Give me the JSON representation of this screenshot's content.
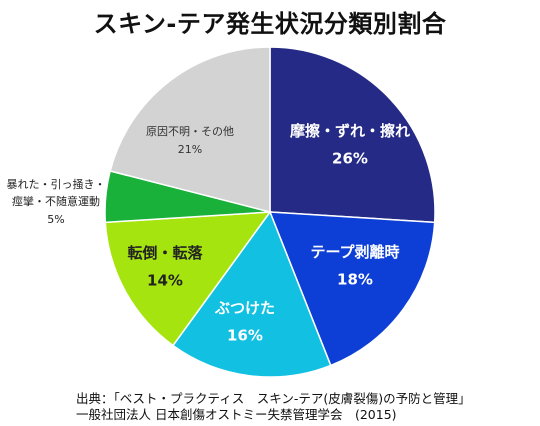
{
  "chart_data": {
    "type": "pie",
    "title": "スキン-テア発生状況分類別割合",
    "start_angle": 0,
    "direction": "clockwise",
    "slices": [
      {
        "label": "摩擦・ずれ・擦れ",
        "value": 26,
        "value_label": "26%",
        "color": "#242a86",
        "label_color": "#ffffff"
      },
      {
        "label": "テープ剥離時",
        "value": 18,
        "value_label": "18%",
        "color": "#0d3fd6",
        "label_color": "#ffffff"
      },
      {
        "label": "ぶつけた",
        "value": 16,
        "value_label": "16%",
        "color": "#12c0e2",
        "label_color": "#ffffff"
      },
      {
        "label": "転倒・転落",
        "value": 14,
        "value_label": "14%",
        "color": "#a6e40f",
        "label_color": "#222222"
      },
      {
        "label": "暴れた・引っ掻き・痙攣・不随意運動",
        "value": 5,
        "value_label": "5%",
        "color": "#19b13a",
        "label_color": "#222222"
      },
      {
        "label": "原因不明・その他",
        "value": 21,
        "value_label": "21%",
        "color": "#d3d3d3",
        "label_color": "#333333"
      }
    ]
  },
  "source": {
    "line1": "出典：「ベスト・プラクティス　スキン-テア(皮膚裂傷)の予防と管理」",
    "line2": "一般社団法人 日本創傷オストミー失禁管理学会　(2015)"
  }
}
